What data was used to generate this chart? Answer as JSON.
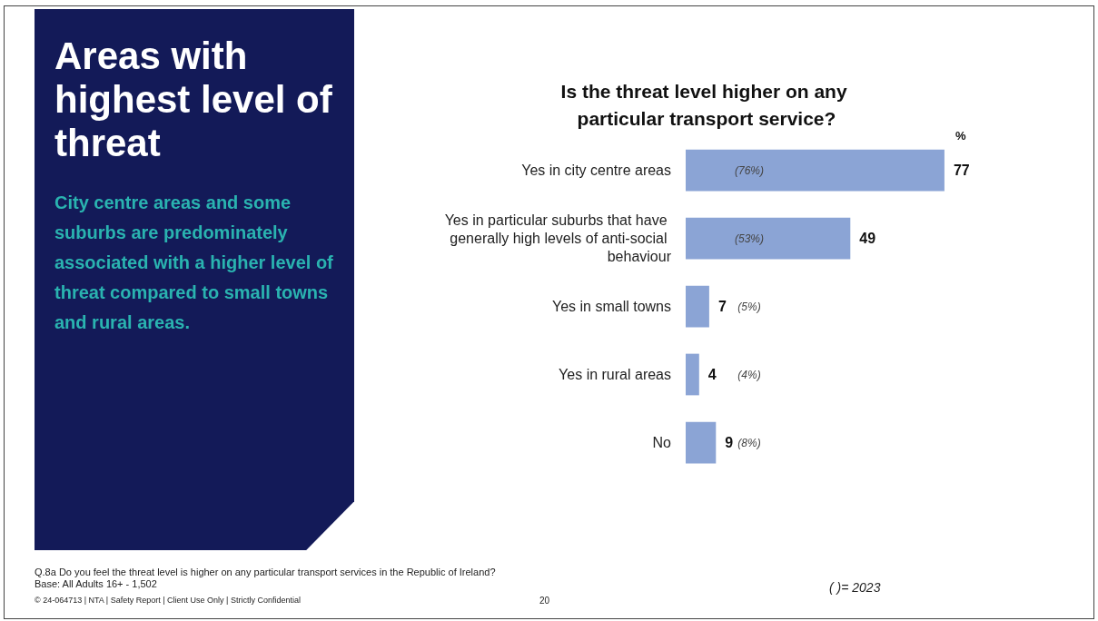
{
  "chart_data": {
    "type": "bar",
    "orientation": "horizontal",
    "title": "Is the threat level higher on any particular transport service?",
    "xlabel": "%",
    "categories": [
      "Yes in city centre areas",
      "Yes in particular suburbs that have generally high levels of anti-social behaviour",
      "Yes in small towns",
      "Yes in rural areas",
      "No"
    ],
    "values": [
      77,
      49,
      7,
      4,
      9
    ],
    "color": "#8ba4d5",
    "data_labels": true,
    "annotations": [
      "(76%)",
      "(53%)",
      "(5%)",
      "(4%)",
      "(8%)",
      "Areas with highest level of threat",
      "City centre areas and some suburbs are predominately associated with a higher level of threat compared to small towns and rural areas.",
      "Q.8a Do you feel the threat level is higher on any particular transport services in the Republic of Ireland?",
      "Base: All Adults 16+ - 1,502",
      "( )= 2023",
      "© 24-064713 | NTA | Safety Report | Client Use Only | Strictly Confidential",
      "20"
    ]
  }
}
